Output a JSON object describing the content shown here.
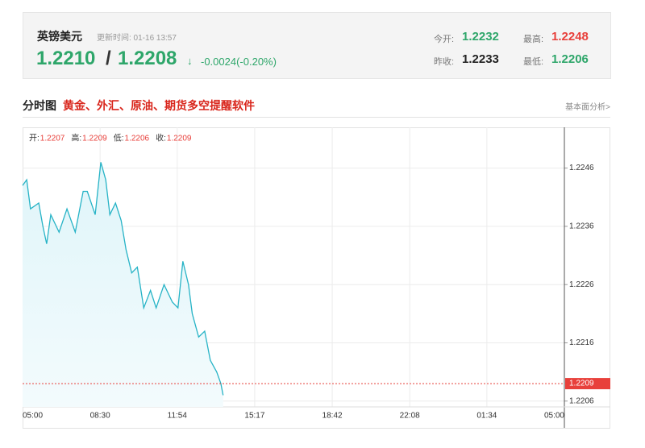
{
  "header": {
    "title": "英镑美元",
    "update_time": "更新时间: 01-16 13:57",
    "bid": "1.2210",
    "separator": "/",
    "ask": "1.2208",
    "arrow": "↓",
    "change": "-0.0024(-0.20%)",
    "stats": [
      {
        "label": "今开:",
        "value": "1.2232",
        "color": "#2ea66a"
      },
      {
        "label": "最高:",
        "value": "1.2248",
        "color": "#e8403b"
      },
      {
        "label": "昨收:",
        "value": "1.2233",
        "color": "#222222"
      },
      {
        "label": "最低:",
        "value": "1.2206",
        "color": "#2ea66a"
      }
    ]
  },
  "section": {
    "title": "分时图",
    "promo": "黄金、外汇、原油、期货多空提醒软件",
    "link": "基本面分析>"
  },
  "chart_data": {
    "type": "line",
    "ohlc": [
      {
        "label": "开:",
        "value": "1.2207"
      },
      {
        "label": "高:",
        "value": "1.2209"
      },
      {
        "label": "低:",
        "value": "1.2206"
      },
      {
        "label": "收:",
        "value": "1.2209"
      }
    ],
    "x": [
      0,
      11,
      21,
      43,
      54,
      64,
      75,
      97,
      118,
      140,
      161,
      172,
      193,
      208,
      221,
      232,
      247,
      262,
      275,
      290,
      305,
      322,
      340,
      355,
      376,
      398,
      413,
      426,
      441,
      451,
      468,
      484,
      499,
      516,
      527,
      533
    ],
    "series": [
      {
        "name": "英镑美元",
        "color": "#26b3c6",
        "values": [
          1.2243,
          1.2244,
          1.2239,
          1.224,
          1.2236,
          1.2233,
          1.2238,
          1.2235,
          1.2239,
          1.2235,
          1.2242,
          1.2242,
          1.2238,
          1.2247,
          1.2244,
          1.2238,
          1.224,
          1.2237,
          1.2232,
          1.2228,
          1.2229,
          1.2222,
          1.2225,
          1.2222,
          1.2226,
          1.2223,
          1.2222,
          1.223,
          1.2226,
          1.2221,
          1.2217,
          1.2218,
          1.2213,
          1.2211,
          1.2209,
          1.2207
        ]
      }
    ],
    "xlim": [
      0,
      1440
    ],
    "xticks": [
      {
        "value": 0,
        "label": "05:00"
      },
      {
        "value": 206,
        "label": "08:30"
      },
      {
        "value": 411,
        "label": "11:54"
      },
      {
        "value": 617,
        "label": "15:17"
      },
      {
        "value": 823,
        "label": "18:42"
      },
      {
        "value": 1029,
        "label": "22:08"
      },
      {
        "value": 1234,
        "label": "01:34"
      },
      {
        "value": 1440,
        "label": "05:00"
      }
    ],
    "ylim": [
      1.2205,
      1.2253
    ],
    "yticks": [
      1.2206,
      1.2216,
      1.2226,
      1.2236,
      1.2246
    ],
    "last_price": 1.2209,
    "last_color": "#e8403b",
    "grid": true
  }
}
